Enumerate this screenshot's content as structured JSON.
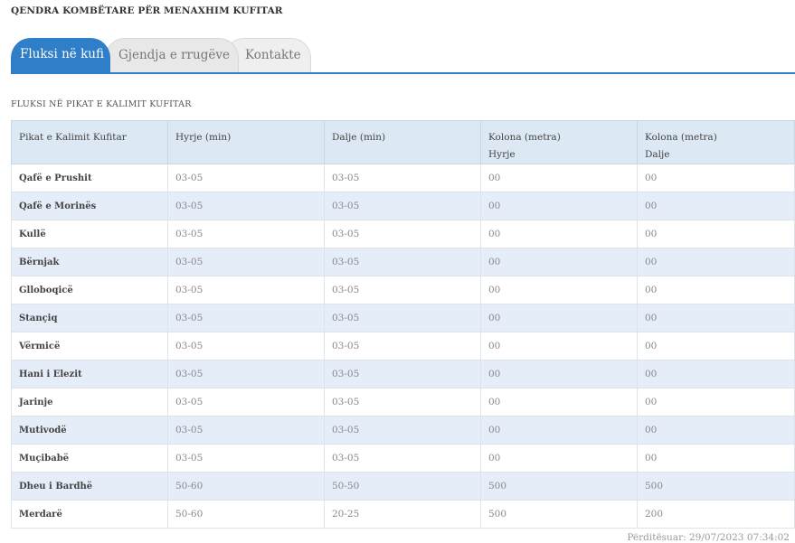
{
  "page_title": "QENDRA KOMBËTARE PËR MENAXHIM KUFITAR",
  "tabs": [
    {
      "label": "Fluksi në kufi",
      "active": true
    },
    {
      "label": "Gjendja e rrugëve",
      "active": false
    },
    {
      "label": "Kontakte",
      "active": false
    }
  ],
  "section_title": "FLUKSI NË PIKAT E KALIMIT KUFITAR",
  "table": {
    "headers": [
      {
        "line1": "Pikat e Kalimit Kufitar",
        "line2": ""
      },
      {
        "line1": "Hyrje (min)",
        "line2": ""
      },
      {
        "line1": "Dalje (min)",
        "line2": ""
      },
      {
        "line1": "Kolona (metra)",
        "line2": "Hyrje"
      },
      {
        "line1": "Kolona (metra)",
        "line2": "Dalje"
      }
    ],
    "rows": [
      [
        "Qafë e Prushit",
        "03-05",
        "03-05",
        "00",
        "00"
      ],
      [
        "Qafë e Morinës",
        "03-05",
        "03-05",
        "00",
        "00"
      ],
      [
        "Kullë",
        "03-05",
        "03-05",
        "00",
        "00"
      ],
      [
        "Bërnjak",
        "03-05",
        "03-05",
        "00",
        "00"
      ],
      [
        "Glloboqicë",
        "03-05",
        "03-05",
        "00",
        "00"
      ],
      [
        "Stançiq",
        "03-05",
        "03-05",
        "00",
        "00"
      ],
      [
        "Vërmicë",
        "03-05",
        "03-05",
        "00",
        "00"
      ],
      [
        "Hani i Elezit",
        "03-05",
        "03-05",
        "00",
        "00"
      ],
      [
        "Jarinje",
        "03-05",
        "03-05",
        "00",
        "00"
      ],
      [
        "Mutivodë",
        "03-05",
        "03-05",
        "00",
        "00"
      ],
      [
        "Muçibabë",
        "03-05",
        "03-05",
        "00",
        "00"
      ],
      [
        "Dheu i Bardhë",
        "50-60",
        "50-50",
        "500",
        "500"
      ],
      [
        "Merdarë",
        "50-60",
        "20-25",
        "500",
        "200"
      ]
    ]
  },
  "updated_text": "Përditësuar: 29/07/2023 07:34:02",
  "colors": {
    "accent": "#2f7ec8",
    "header_bg": "#dde8f5",
    "row_alt_bg": "#e4edf8"
  }
}
